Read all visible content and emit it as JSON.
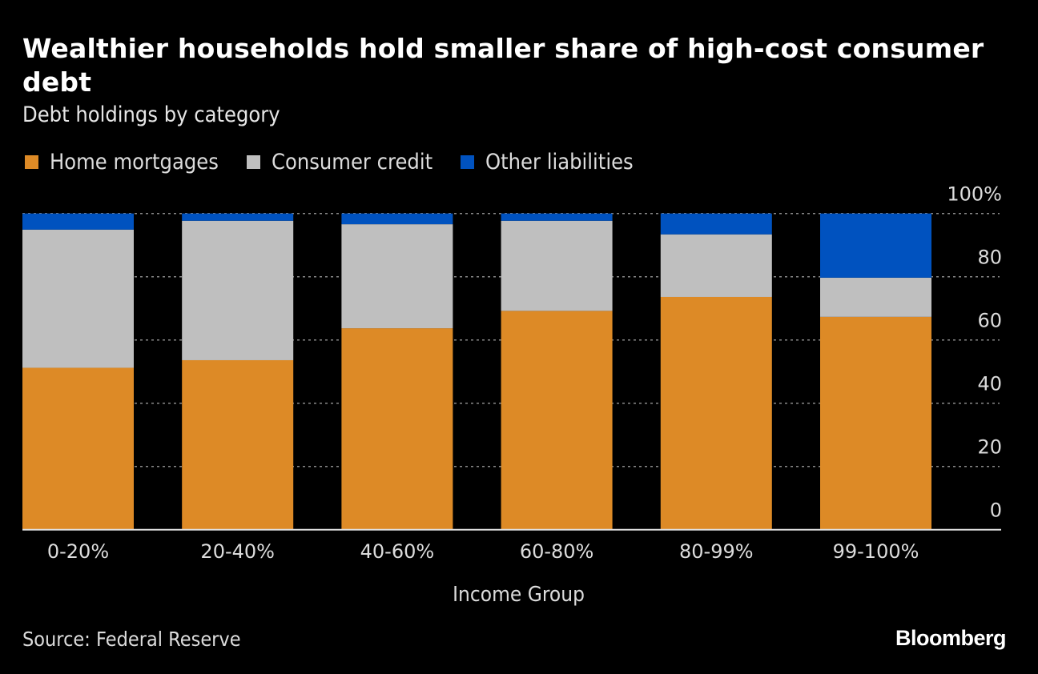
{
  "header": {
    "title": "Wealthier households hold smaller share of high-cost consumer debt",
    "subtitle": "Debt holdings by category"
  },
  "legend": {
    "items": [
      {
        "label": "Home mortgages",
        "color": "#dd8a26"
      },
      {
        "label": "Consumer credit",
        "color": "#bfbfbf"
      },
      {
        "label": "Other liabilities",
        "color": "#0052bf"
      }
    ]
  },
  "footer": {
    "source": "Source: Federal Reserve",
    "brand": "Bloomberg"
  },
  "chart_data": {
    "type": "bar",
    "stacked": true,
    "title": "Wealthier households hold smaller share of high-cost consumer debt",
    "subtitle": "Debt holdings by category",
    "xlabel": "Income Group",
    "ylabel": "",
    "ylim": [
      0,
      100
    ],
    "y_ticks": [
      0,
      20,
      40,
      60,
      80,
      100
    ],
    "y_tick_labels": [
      "0",
      "20",
      "40",
      "60",
      "80",
      "100%"
    ],
    "y_axis_side": "right",
    "grid": true,
    "legend_position": "top-left",
    "categories": [
      "0-20%",
      "20-40%",
      "40-60%",
      "60-80%",
      "80-99%",
      "99-100%"
    ],
    "series": [
      {
        "name": "Home mortgages",
        "color": "#dd8a26",
        "values": [
          51.2,
          53.6,
          63.7,
          69.2,
          73.6,
          67.3
        ]
      },
      {
        "name": "Consumer credit",
        "color": "#bfbfbf",
        "values": [
          43.7,
          44.1,
          32.9,
          28.5,
          19.8,
          12.4
        ]
      },
      {
        "name": "Other liabilities",
        "color": "#0052bf",
        "values": [
          5.1,
          2.3,
          3.4,
          2.3,
          6.6,
          20.3
        ]
      }
    ],
    "source": "Source: Federal Reserve"
  }
}
